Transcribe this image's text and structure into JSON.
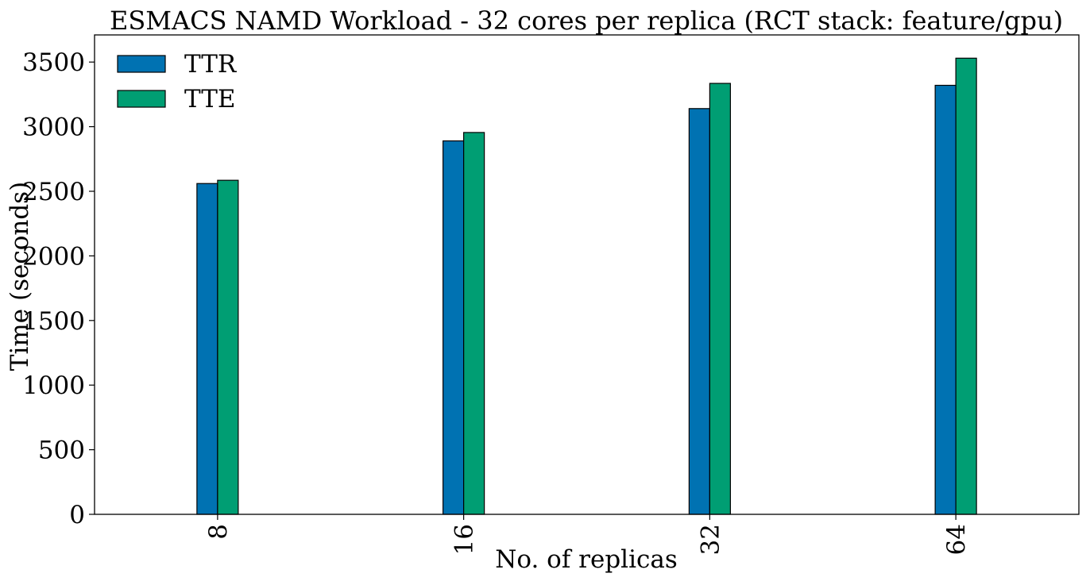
{
  "chart_data": {
    "type": "bar",
    "title": "ESMACS NAMD Workload - 32 cores per replica (RCT stack: feature/gpu)",
    "xlabel": "No. of replicas",
    "ylabel": "Time (seconds)",
    "categories": [
      "8",
      "16",
      "32",
      "64"
    ],
    "series": [
      {
        "name": "TTR",
        "color": "#0072b2",
        "values": [
          2560,
          2890,
          3140,
          3320
        ]
      },
      {
        "name": "TTE",
        "color": "#009e73",
        "values": [
          2585,
          2955,
          3335,
          3530
        ]
      }
    ],
    "yticks": [
      0,
      500,
      1000,
      1500,
      2000,
      2500,
      3000,
      3500
    ],
    "ylim": [
      0,
      3710
    ],
    "grid": false,
    "legend_position": "top-left",
    "x_tick_rotation": "vertical"
  }
}
